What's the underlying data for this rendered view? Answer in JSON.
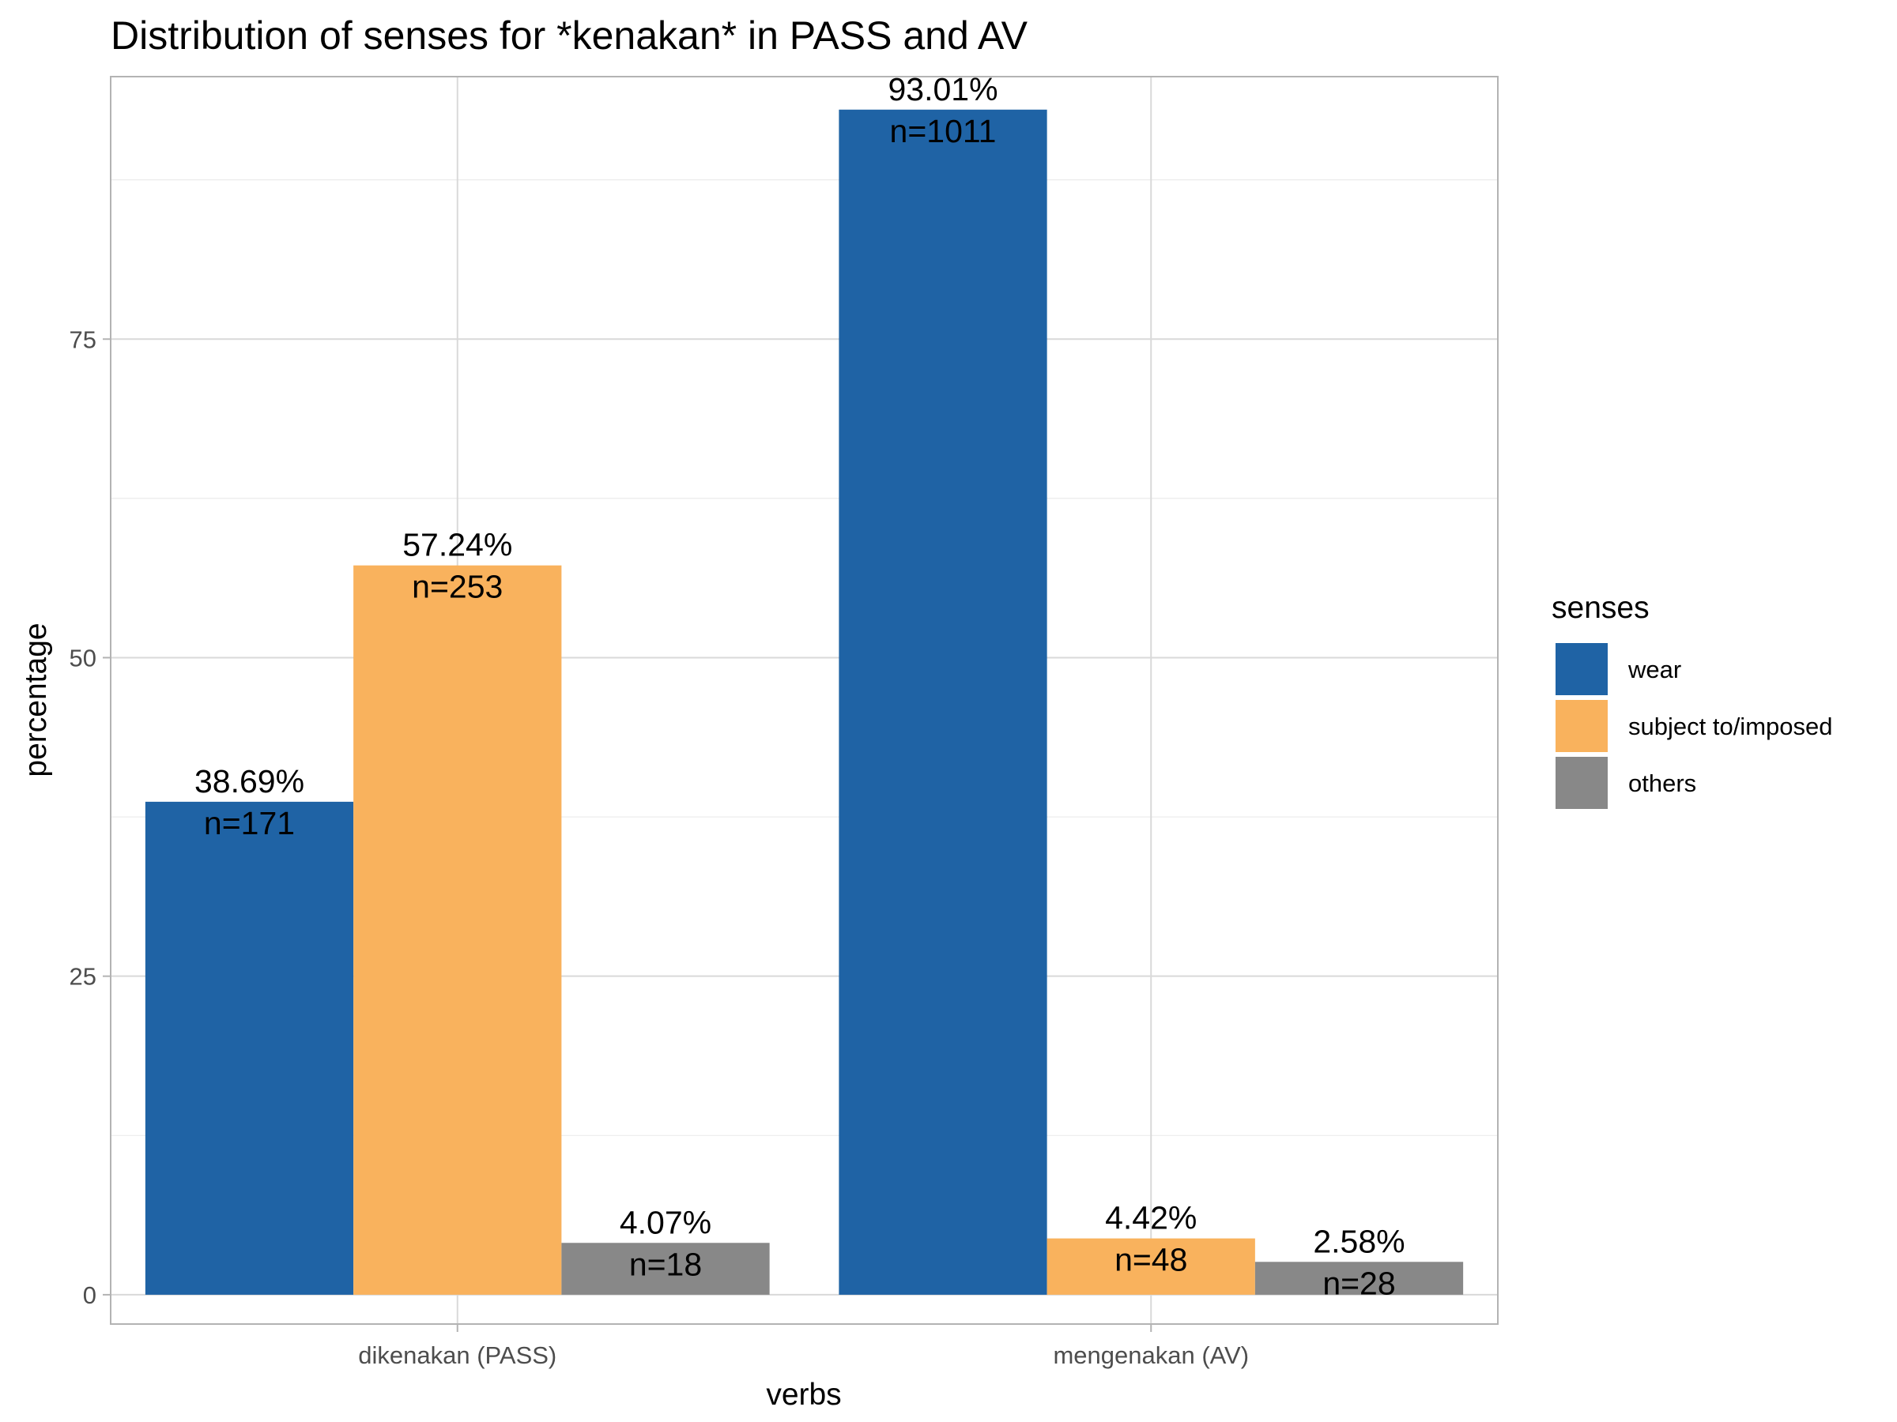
{
  "chart_data": {
    "type": "bar",
    "title": "Distribution of senses for *kenakan* in PASS and AV",
    "xlabel": "verbs",
    "ylabel": "percentage",
    "categories": [
      "dikenakan (PASS)",
      "mengenakan (AV)"
    ],
    "ylim": [
      -2.3,
      95.6
    ],
    "yticks": [
      0,
      25,
      50,
      75
    ],
    "grid": true,
    "legend": {
      "title": "senses",
      "position": "right"
    },
    "series": [
      {
        "name": "wear",
        "color": "#1f63a5",
        "values": [
          38.69,
          93.01
        ],
        "labels": [
          "38.69%",
          "93.01%"
        ],
        "counts": [
          "n=171",
          "n=1011"
        ]
      },
      {
        "name": "subject to/imposed",
        "color": "#f9b25d",
        "values": [
          57.24,
          4.42
        ],
        "labels": [
          "57.24%",
          "4.42%"
        ],
        "counts": [
          "n=253",
          "n=48"
        ]
      },
      {
        "name": "others",
        "color": "#888888",
        "values": [
          4.07,
          2.58
        ],
        "labels": [
          "4.07%",
          "2.58%"
        ],
        "counts": [
          "n=18",
          "n=28"
        ]
      }
    ]
  }
}
